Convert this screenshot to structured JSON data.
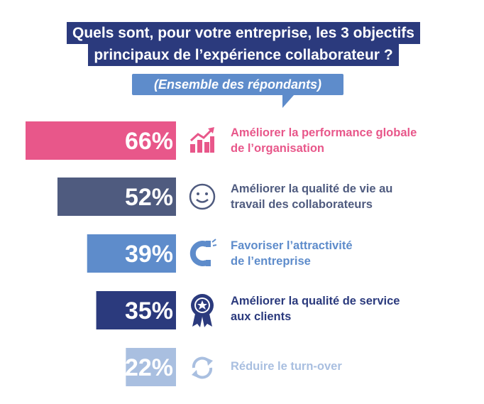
{
  "header": {
    "title_line1": "Quels sont, pour votre entreprise, les 3 objectifs",
    "title_line2": "principaux de l’expérience collaborateur ?",
    "subtitle": "(Ensemble des répondants)"
  },
  "colors": {
    "title_bg": "#2b3a7d",
    "subtitle_bg": "#5e8ccb"
  },
  "chart_data": {
    "type": "bar",
    "orientation": "horizontal",
    "title": "Quels sont, pour votre entreprise, les 3 objectifs principaux de l’expérience collaborateur ?",
    "subtitle": "(Ensemble des répondants)",
    "categories": [
      "Améliorer la performance globale de l’organisation",
      "Améliorer la qualité de vie au travail des collaborateurs",
      "Favoriser l’attractivité de l’entreprise",
      "Améliorer la qualité de service aux clients",
      "Réduire le turn-over"
    ],
    "values": [
      66,
      52,
      39,
      35,
      22
    ],
    "value_labels": [
      "66%",
      "52%",
      "39%",
      "35%",
      "22%"
    ],
    "colors": [
      "#e8578a",
      "#4f5b7f",
      "#5e8ccb",
      "#2b3a7d",
      "#a9bfe0"
    ],
    "icons": [
      "growth-chart-icon",
      "smiley-icon",
      "magnet-icon",
      "award-badge-icon",
      "refresh-cycle-icon"
    ],
    "unit": "%",
    "xlim": [
      0,
      100
    ]
  },
  "rows": [
    {
      "label_line1": "Améliorer la performance globale",
      "label_line2": "de l’organisation"
    },
    {
      "label_line1": "Améliorer la qualité de vie au",
      "label_line2": "travail des collaborateurs"
    },
    {
      "label_line1": "Favoriser l’attractivité",
      "label_line2": "de l’entreprise"
    },
    {
      "label_line1": "Améliorer la qualité de service",
      "label_line2": "aux clients"
    },
    {
      "label_line1": "Réduire le turn-over",
      "label_line2": ""
    }
  ]
}
